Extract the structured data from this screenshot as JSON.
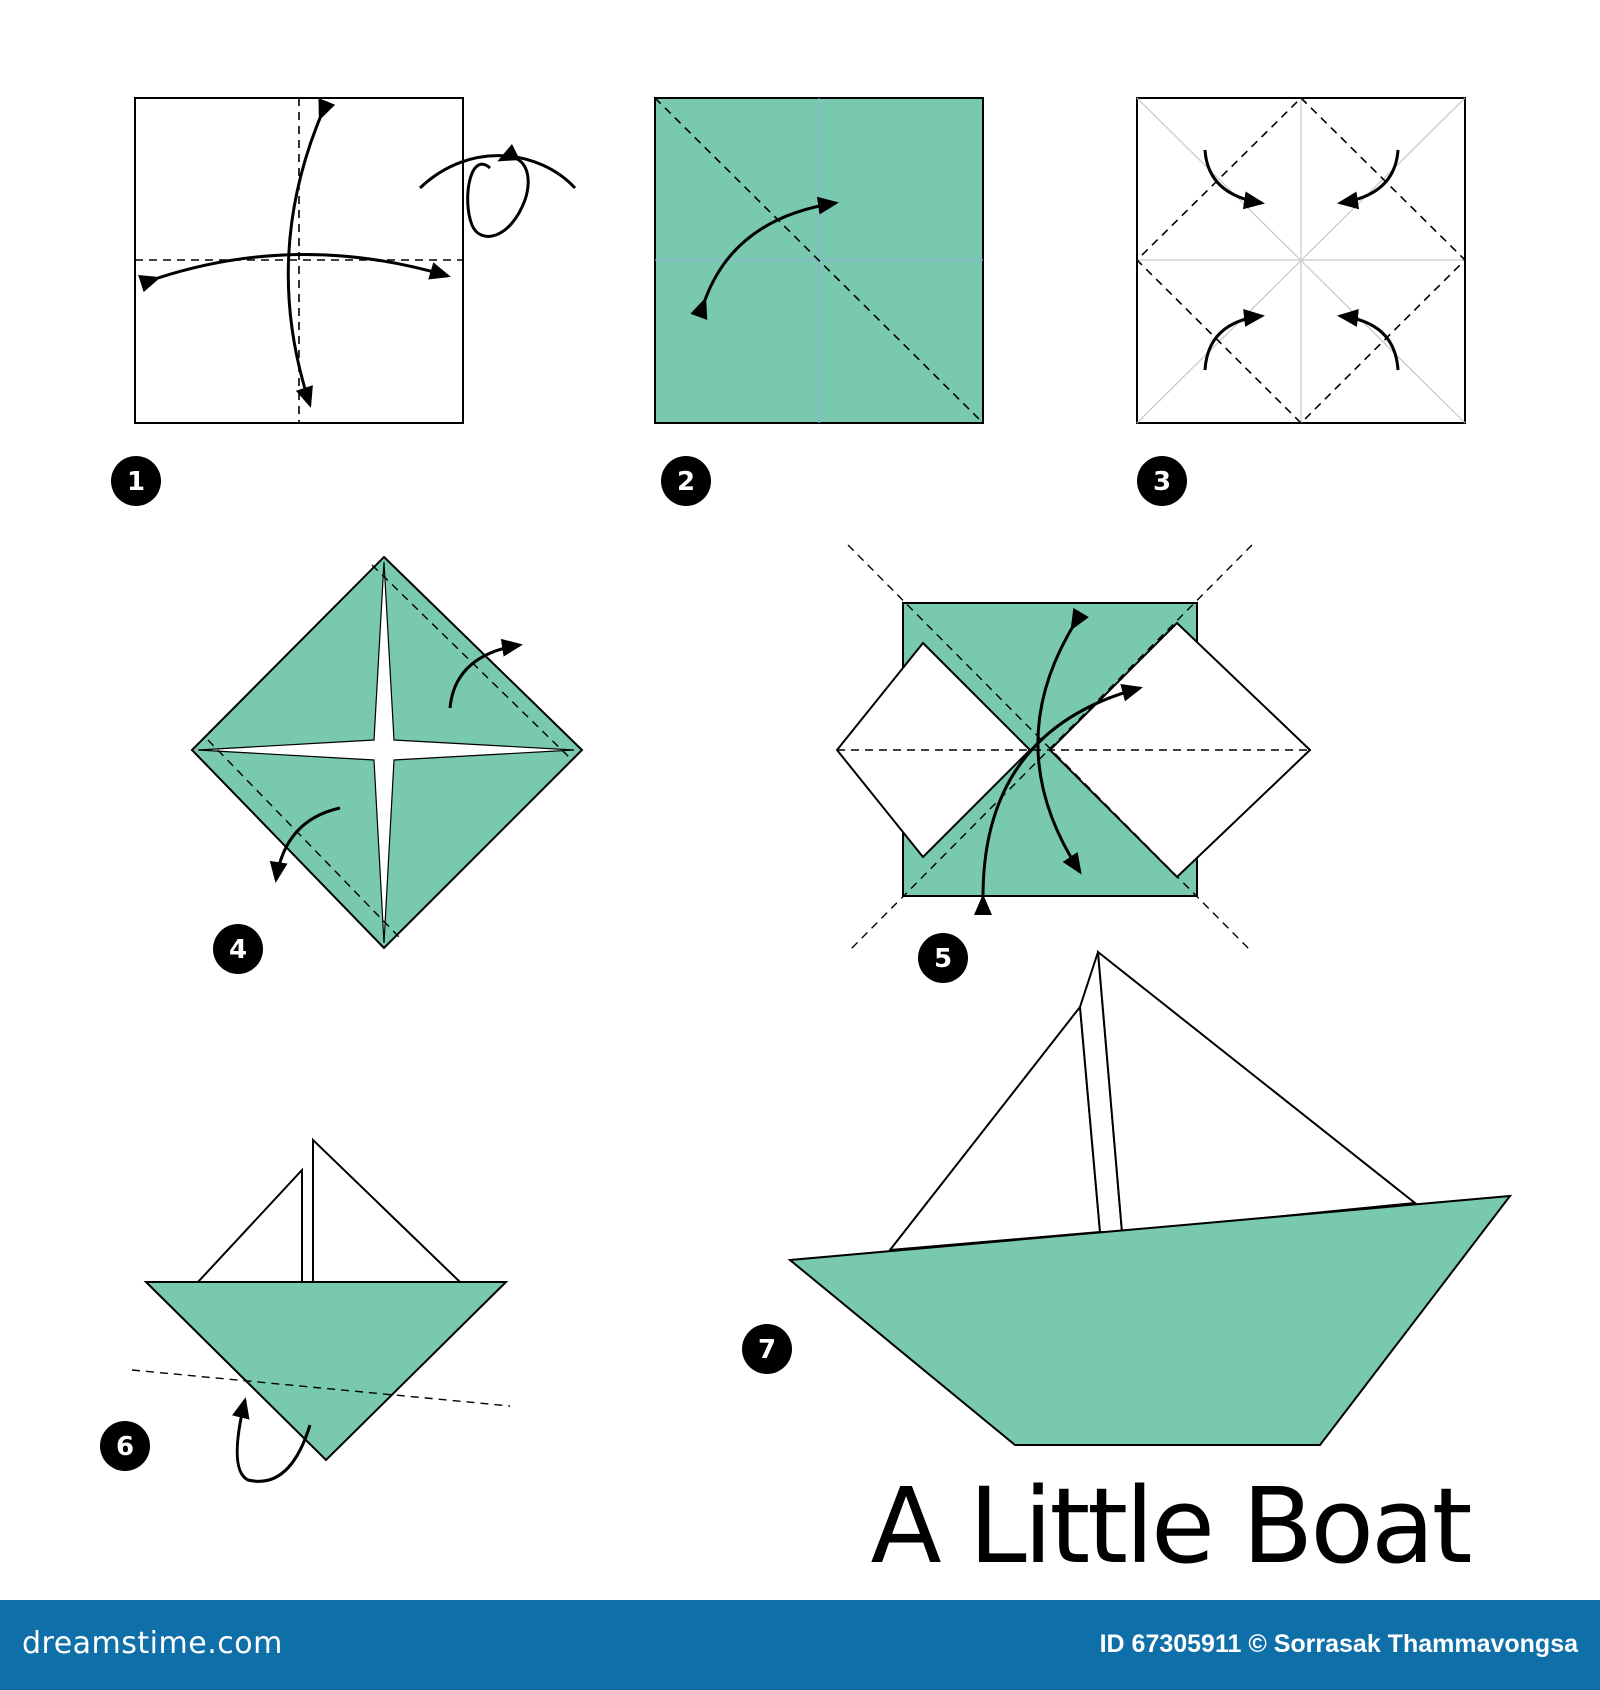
{
  "title": "A Little Boat",
  "steps": [
    "1",
    "2",
    "3",
    "4",
    "5",
    "6",
    "7"
  ],
  "footer": {
    "brand": "dreamstime.com",
    "credit": "ID 67305911 © Sorrasak Thammavongsa"
  },
  "colors": {
    "paper_green": "#78c9b0",
    "line": "#000000",
    "footer_bg": "#0f6fa8"
  }
}
